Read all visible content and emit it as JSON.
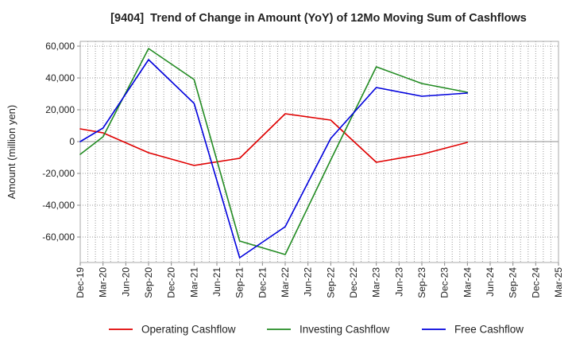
{
  "chart_data": {
    "type": "line",
    "title": "[9404]  Trend of Change in Amount (YoY) of 12Mo Moving Sum of Cashflows",
    "xlabel": "",
    "ylabel": "Amount (million yen)",
    "categories": [
      "Dec-19",
      "Mar-20",
      "Jun-20",
      "Sep-20",
      "Dec-20",
      "Mar-21",
      "Jun-21",
      "Sep-21",
      "Dec-21",
      "Mar-22",
      "Jun-22",
      "Sep-22",
      "Dec-22",
      "Mar-23",
      "Jun-23",
      "Sep-23",
      "Dec-23",
      "Mar-24",
      "Jun-24",
      "Sep-24",
      "Dec-24",
      "Mar-25"
    ],
    "y_ticks": [
      60000,
      40000,
      20000,
      0,
      -20000,
      -40000,
      -60000
    ],
    "y_tick_labels": [
      "60,000",
      "40,000",
      "20,000",
      "0",
      "-20,000",
      "-40,000",
      "-60,000"
    ],
    "ylim": [
      -76000,
      63000
    ],
    "grid": true,
    "legend_position": "bottom",
    "x": [
      "Dec-19",
      "Mar-20",
      "Sep-20",
      "Mar-21",
      "Sep-21",
      "Mar-22",
      "Sep-22",
      "Mar-23",
      "Sep-23",
      "Mar-24"
    ],
    "series": [
      {
        "name": "Operating Cashflow",
        "color": "#e00000",
        "values": [
          8000,
          5500,
          -7000,
          -15000,
          -10500,
          17500,
          13500,
          -13000,
          -8000,
          -500
        ]
      },
      {
        "name": "Investing Cashflow",
        "color": "#228b22",
        "values": [
          -8000,
          3000,
          58500,
          39000,
          -62500,
          -71000,
          -11500,
          47000,
          36500,
          31000
        ]
      },
      {
        "name": "Free Cashflow",
        "color": "#0000dd",
        "values": [
          0,
          8500,
          51500,
          24000,
          -73000,
          -53500,
          2000,
          34000,
          28500,
          30500
        ]
      }
    ]
  }
}
